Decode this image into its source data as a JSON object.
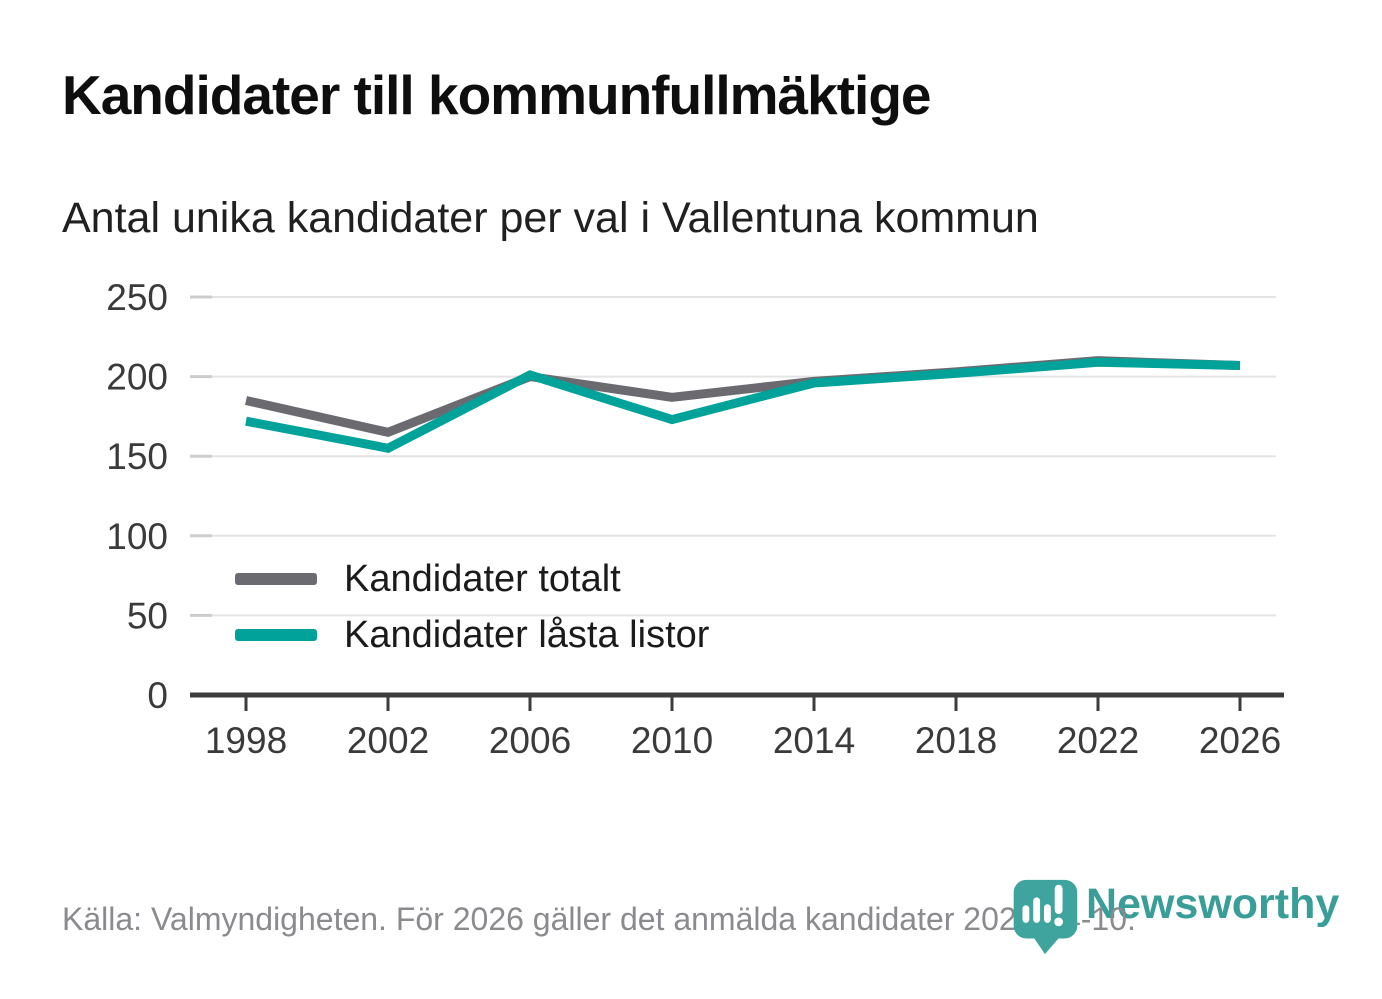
{
  "chart_data": {
    "type": "line",
    "title": "Kandidater till kommunfullmäktige",
    "subtitle": "Antal unika kandidater per val i Vallentuna kommun",
    "categories": [
      "1998",
      "2002",
      "2006",
      "2010",
      "2014",
      "2018",
      "2022",
      "2026"
    ],
    "series": [
      {
        "name": "Kandidater totalt",
        "color": "#6b6a71",
        "values": [
          185,
          165,
          200,
          187,
          197,
          203,
          210,
          207
        ]
      },
      {
        "name": "Kandidater låsta listor",
        "color": "#00a29a",
        "values": [
          172,
          155,
          201,
          173,
          196,
          202,
          209,
          207
        ]
      }
    ],
    "xlabel": "",
    "ylabel": "",
    "ylim": [
      0,
      250
    ],
    "yticks": [
      0,
      50,
      100,
      150,
      200,
      250
    ],
    "grid": "horizontal",
    "legend_position": "inside-left"
  },
  "footer": {
    "source": "Källa: Valmyndigheten. För 2026 gäller det anmälda kandidater 2026-04-10."
  },
  "logo": {
    "text": "Newsworthy",
    "icon": "newsworthy-pin-barchart-icon",
    "color": "#3a9e98"
  },
  "style_colors": {
    "accent_teal": "#00a29a",
    "neutral_gray": "#6b6a71",
    "axis": "#3c3c3c",
    "gridline": "#e4e4e4",
    "source_text": "#8a8a8f"
  }
}
